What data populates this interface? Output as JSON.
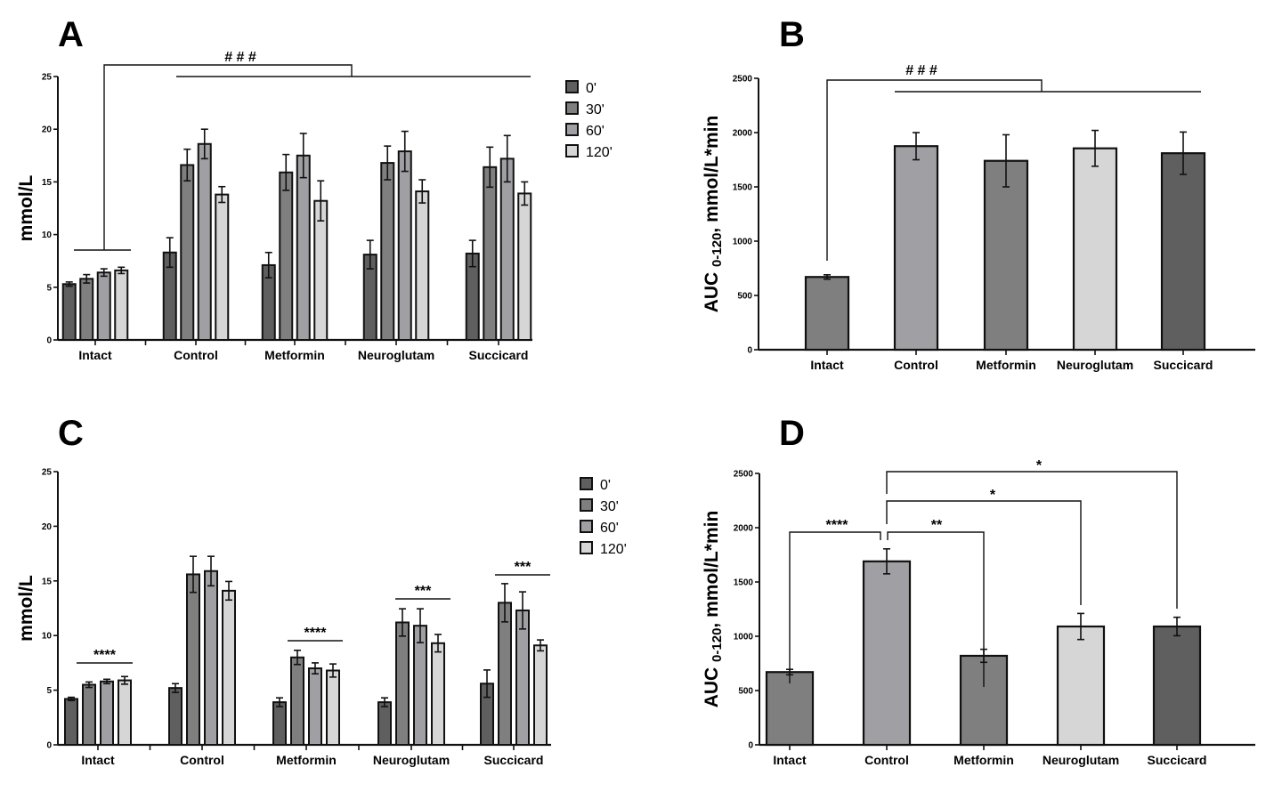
{
  "colors": {
    "t0": "#5f5f5f",
    "t30": "#7f7f7f",
    "t60": "#a0a0a4",
    "t120": "#d6d6d6",
    "stroke": "#111111"
  },
  "chart_data": [
    {
      "panel": "A",
      "type": "bar",
      "ylabel": "mmol/L",
      "ylim": [
        0,
        25
      ],
      "yticks": [
        "0",
        "5",
        "10",
        "15",
        "20",
        "25"
      ],
      "categories": [
        "Intact",
        "Control",
        "Metformin",
        "Neuroglutam",
        "Succicard"
      ],
      "legend": [
        "0'",
        "30'",
        "60'",
        "120'"
      ],
      "legend_position": "right",
      "series": [
        {
          "name": "0'",
          "values": [
            5.3,
            8.3,
            7.1,
            8.1,
            8.2
          ],
          "errors": [
            0.2,
            1.4,
            1.2,
            1.35,
            1.25
          ]
        },
        {
          "name": "30'",
          "values": [
            5.8,
            16.6,
            15.9,
            16.8,
            16.4
          ],
          "errors": [
            0.4,
            1.5,
            1.7,
            1.6,
            1.9
          ]
        },
        {
          "name": "60'",
          "values": [
            6.4,
            18.6,
            17.5,
            17.9,
            17.2
          ],
          "errors": [
            0.35,
            1.4,
            2.1,
            1.9,
            2.2
          ]
        },
        {
          "name": "120'",
          "values": [
            6.6,
            13.8,
            13.2,
            14.1,
            13.9
          ],
          "errors": [
            0.3,
            0.75,
            1.9,
            1.1,
            1.1
          ]
        }
      ],
      "annotations": [
        {
          "text": "###",
          "from": "Intact",
          "to": [
            "Control",
            "Metformin",
            "Neuroglutam",
            "Succicard"
          ]
        }
      ]
    },
    {
      "panel": "B",
      "type": "bar",
      "ylabel": "AUC",
      "ylabel_sub": "0-120",
      "ylabel_rest": ", mmol/L*min",
      "ylim": [
        0,
        2500
      ],
      "yticks": [
        "0",
        "500",
        "1000",
        "1500",
        "2000",
        "2500"
      ],
      "categories": [
        "Intact",
        "Control",
        "Metformin",
        "Neuroglutam",
        "Succicard"
      ],
      "values": [
        670,
        1875,
        1740,
        1855,
        1810
      ],
      "errors": [
        20,
        125,
        240,
        165,
        195
      ],
      "bar_colors": [
        "t30",
        "t60",
        "t30",
        "t120",
        "t0"
      ],
      "annotations": [
        {
          "text": "###",
          "from": "Intact",
          "to": [
            "Control",
            "Metformin",
            "Neuroglutam",
            "Succicard"
          ]
        }
      ]
    },
    {
      "panel": "C",
      "type": "bar",
      "ylabel": "mmol/L",
      "ylim": [
        0,
        25
      ],
      "yticks": [
        "0",
        "5",
        "10",
        "15",
        "20",
        "25"
      ],
      "categories": [
        "Intact",
        "Control",
        "Metformin",
        "Neuroglutam",
        "Succicard"
      ],
      "legend": [
        "0'",
        "30'",
        "60'",
        "120'"
      ],
      "legend_position": "right",
      "series": [
        {
          "name": "0'",
          "values": [
            4.2,
            5.2,
            3.9,
            3.9,
            5.6
          ],
          "errors": [
            0.15,
            0.4,
            0.4,
            0.4,
            1.25
          ]
        },
        {
          "name": "30'",
          "values": [
            5.5,
            15.6,
            8.0,
            11.2,
            13.0
          ],
          "errors": [
            0.25,
            1.65,
            0.65,
            1.25,
            1.75
          ]
        },
        {
          "name": "60'",
          "values": [
            5.8,
            15.9,
            7.0,
            10.9,
            12.3
          ],
          "errors": [
            0.2,
            1.35,
            0.5,
            1.55,
            1.7
          ]
        },
        {
          "name": "120'",
          "values": [
            5.9,
            14.1,
            6.8,
            9.3,
            9.1
          ],
          "errors": [
            0.35,
            0.85,
            0.6,
            0.8,
            0.5
          ]
        }
      ],
      "annotations": [
        {
          "category": "Intact",
          "text": "****"
        },
        {
          "category": "Metformin",
          "text": "****"
        },
        {
          "category": "Neuroglutam",
          "text": "***"
        },
        {
          "category": "Succicard",
          "text": "***"
        }
      ]
    },
    {
      "panel": "D",
      "type": "bar",
      "ylabel": "AUC",
      "ylabel_sub": "0-120",
      "ylabel_rest": ", mmol/L*min",
      "ylim": [
        0,
        2500
      ],
      "yticks": [
        "0",
        "500",
        "1000",
        "1500",
        "2000",
        "2500"
      ],
      "categories": [
        "Intact",
        "Control",
        "Metformin",
        "Neuroglutam",
        "Succicard"
      ],
      "values": [
        670,
        1690,
        820,
        1090,
        1090
      ],
      "errors": [
        25,
        115,
        60,
        120,
        85
      ],
      "bar_colors": [
        "t30",
        "t60",
        "t30",
        "t120",
        "t0"
      ],
      "annotations": [
        {
          "from": "Intact",
          "to": "Control",
          "text": "****"
        },
        {
          "from": "Control",
          "to": "Metformin",
          "text": "**"
        },
        {
          "from": "Control",
          "to": "Neuroglutam",
          "text": "*"
        },
        {
          "from": "Control",
          "to": "Succicard",
          "text": "*"
        }
      ]
    }
  ]
}
